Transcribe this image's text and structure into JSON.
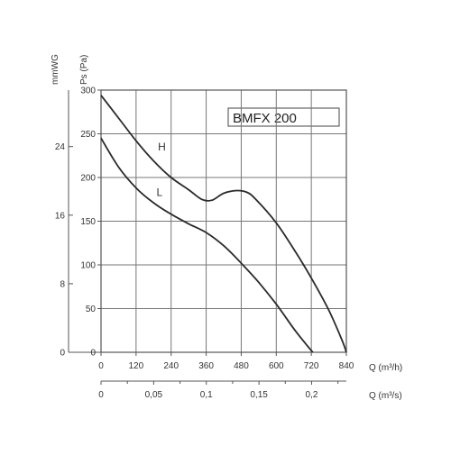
{
  "chart_data": {
    "type": "line",
    "title": "BMFX 200",
    "ylabel": "Ps (Pa)",
    "ylabel2": "mmWG",
    "xlabel": "Q (m³/h)",
    "xlabel2": "Q (m³/s)",
    "xlim": [
      0,
      840
    ],
    "ylim": [
      0,
      300
    ],
    "grid": true,
    "x_ticks": [
      0,
      120,
      240,
      360,
      480,
      600,
      720,
      840
    ],
    "y_ticks": [
      0,
      50,
      100,
      150,
      200,
      250,
      300
    ],
    "y2_ticks": [
      {
        "label": "0",
        "value": 0
      },
      {
        "label": "8",
        "value": 8
      },
      {
        "label": "16",
        "value": 16
      },
      {
        "label": "24",
        "value": 24
      }
    ],
    "x2_ticks": [
      {
        "label": "0",
        "value": 0
      },
      {
        "label": "0,05",
        "value": 0.05
      },
      {
        "label": "0,1",
        "value": 0.1
      },
      {
        "label": "0,15",
        "value": 0.15
      },
      {
        "label": "0,2",
        "value": 0.2
      }
    ],
    "x2_max": 0.233,
    "series": [
      {
        "name": "H",
        "x": [
          0,
          60,
          120,
          180,
          240,
          300,
          345,
          380,
          420,
          465,
          500,
          530,
          600,
          660,
          720,
          780,
          825,
          840
        ],
        "y": [
          294,
          268,
          242,
          219,
          200,
          186,
          175,
          174,
          182,
          185,
          183,
          175,
          148,
          118,
          85,
          48,
          14,
          0
        ],
        "label_at": [
          195,
          235
        ]
      },
      {
        "name": "L",
        "x": [
          0,
          60,
          120,
          180,
          240,
          300,
          360,
          420,
          480,
          540,
          600,
          660,
          700,
          725
        ],
        "y": [
          245,
          212,
          188,
          171,
          158,
          147,
          137,
          122,
          102,
          80,
          55,
          27,
          10,
          0
        ],
        "label_at": [
          190,
          183
        ]
      }
    ]
  }
}
